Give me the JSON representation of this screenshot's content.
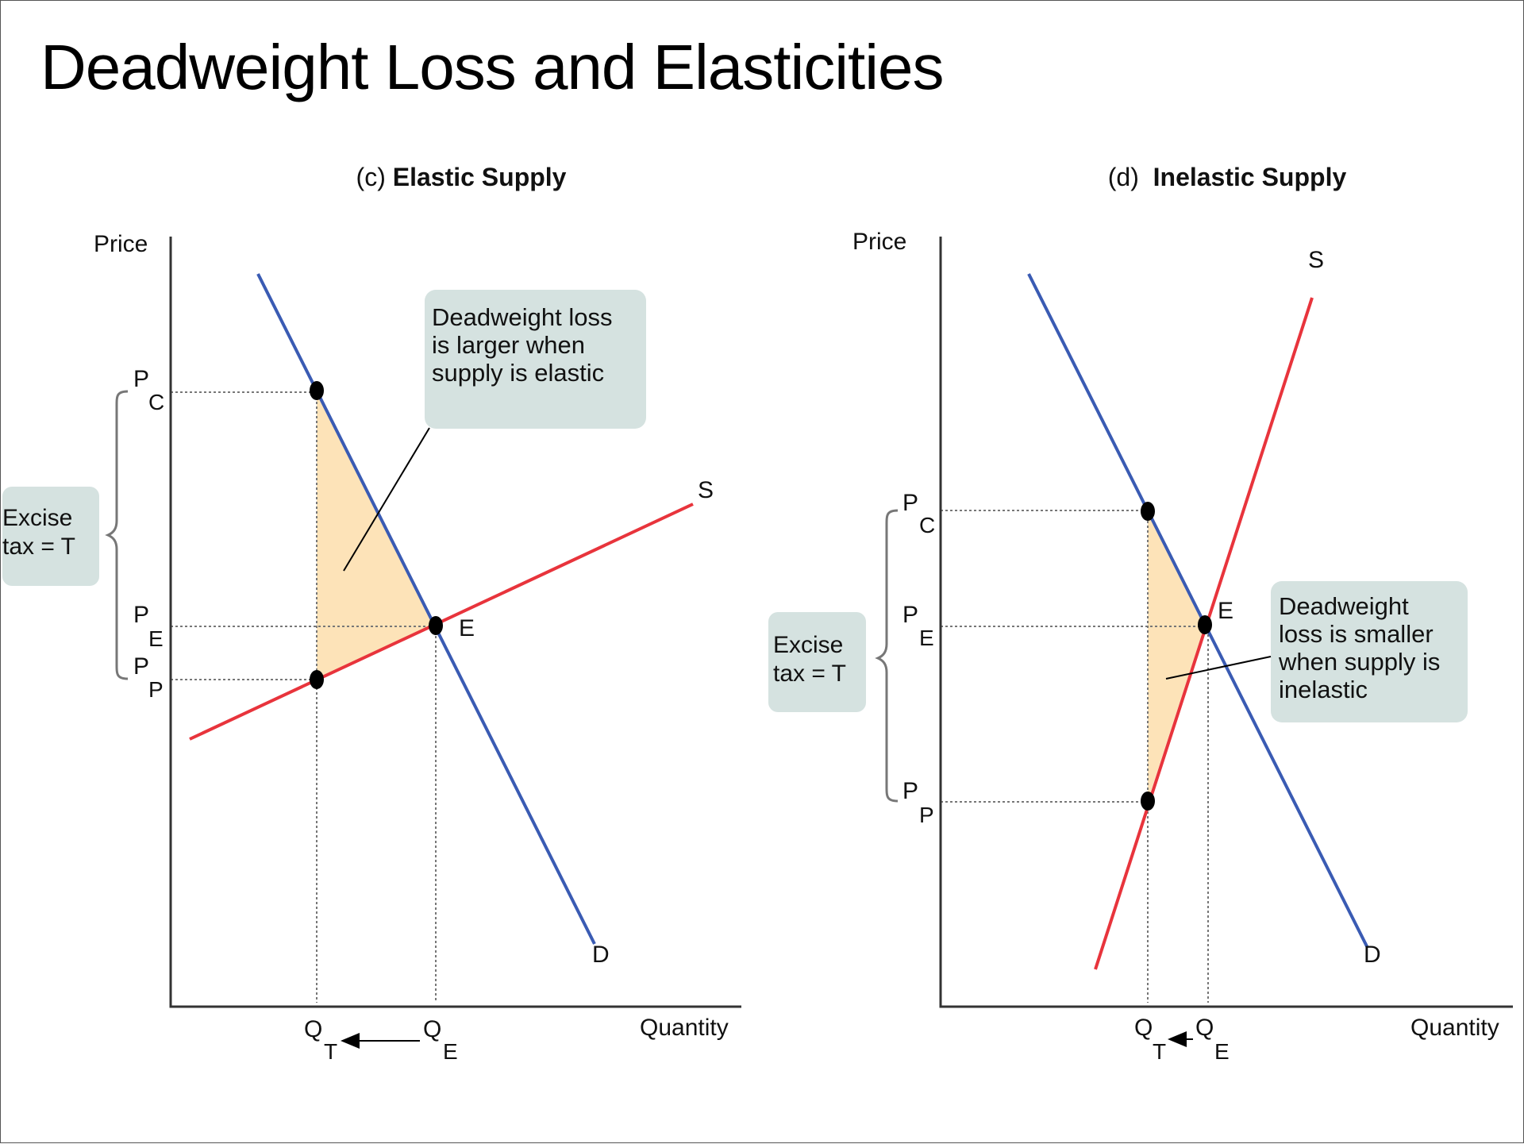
{
  "title": "Deadweight Loss and Elasticities",
  "colors": {
    "demand": "#3a5bb3",
    "supply": "#e8343c",
    "dwl_fill": "#fde3b8",
    "callout_bg": "#d5e2e0",
    "axis": "#333333",
    "guide": "#777777"
  },
  "panels": [
    {
      "prefix": "(c) ",
      "title": "Elastic Supply",
      "y_axis_label": "Price",
      "x_axis_label": "Quantity",
      "supply_label": "S",
      "demand_label": "D",
      "equilibrium_label": "E",
      "price_labels": {
        "pc": {
          "main": "P",
          "sub": "C"
        },
        "pe": {
          "main": "P",
          "sub": "E"
        },
        "pp": {
          "main": "P",
          "sub": "P"
        }
      },
      "quantity_labels": {
        "qt": {
          "main": "Q",
          "sub": "T"
        },
        "qe": {
          "main": "Q",
          "sub": "E"
        }
      },
      "tax_label": [
        "Excise",
        "tax = T"
      ],
      "callout": [
        "Deadweight loss",
        "is larger when",
        "supply is elastic"
      ]
    },
    {
      "prefix": "(d)  ",
      "title": "Inelastic Supply",
      "y_axis_label": "Price",
      "x_axis_label": "Quantity",
      "supply_label": "S",
      "demand_label": "D",
      "equilibrium_label": "E",
      "price_labels": {
        "pc": {
          "main": "P",
          "sub": "C"
        },
        "pe": {
          "main": "P",
          "sub": "E"
        },
        "pp": {
          "main": "P",
          "sub": "P"
        }
      },
      "quantity_labels": {
        "qt": {
          "main": "Q",
          "sub": "T"
        },
        "qe": {
          "main": "Q",
          "sub": "E"
        }
      },
      "tax_label": [
        "Excise",
        "tax = T"
      ],
      "callout": [
        "Deadweight",
        "loss is smaller",
        "when supply is",
        "inelastic"
      ]
    }
  ]
}
